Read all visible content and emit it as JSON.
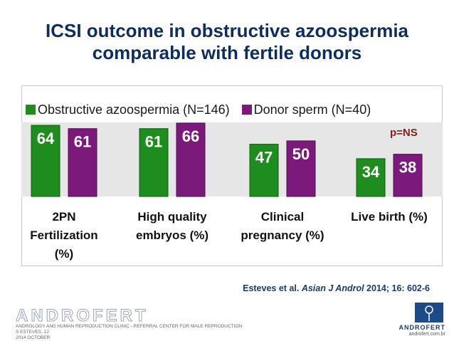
{
  "title": {
    "line1": "ICSI outcome in obstructive azoospermia",
    "line2": "comparable with fertile donors"
  },
  "significance": "p=NS",
  "reference": {
    "authors": "Esteves et al.",
    "journal": "Asian J Androl",
    "details": "2014; 16: 602-6"
  },
  "footer": {
    "brand": "ANDROFERT",
    "line1": "ANDROLOGY AND HUMAN REPRODUCTION CLINIC - REFERRAL CENTER FOR MALE REPRODUCTION",
    "line2": "S ESTEVES, 12",
    "line3": "2014 OCTOBER",
    "logo_name": "ANDROFERT",
    "logo_url": "androfert.com.br"
  },
  "colors": {
    "obstructive": "#1e8c1e",
    "donor": "#7b1a7b",
    "title": "#0f2d5c"
  },
  "chart_data": {
    "type": "bar",
    "title": "ICSI outcome in obstructive azoospermia comparable with fertile donors",
    "categories": [
      "2PN Fertilization (%)",
      "High quality embryos (%)",
      "Clinical pregnancy (%)",
      "Live birth (%)"
    ],
    "category_lines": [
      [
        "2PN",
        "Fertilization",
        "(%)"
      ],
      [
        "High quality",
        "embryos (%)"
      ],
      [
        "Clinical",
        "pregnancy (%)"
      ],
      [
        "Live birth (%)"
      ]
    ],
    "series": [
      {
        "name": "Obstructive azoospermia (N=146)",
        "values": [
          64,
          61,
          47,
          34
        ]
      },
      {
        "name": "Donor sperm (N=40)",
        "values": [
          61,
          66,
          50,
          38
        ]
      }
    ],
    "ylim": [
      0,
      70
    ],
    "legend": "top-left",
    "annotation": "p=NS"
  }
}
